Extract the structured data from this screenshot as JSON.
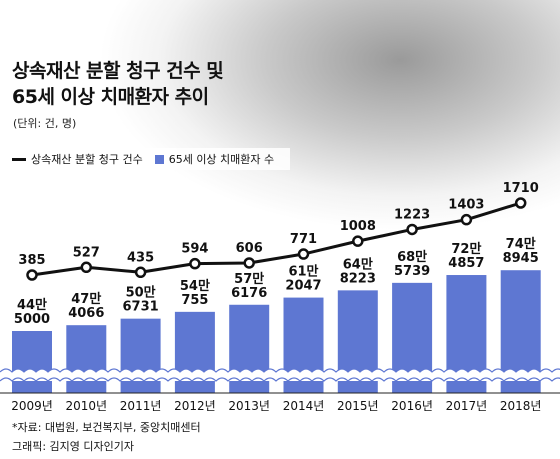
{
  "title_line1": "상속재산 분할 청구 건수 및",
  "title_line2": "65세 이상 치매환자 추이",
  "unit": "(단위: 건, 명)",
  "source": "*자료: 대법원, 보건복지부, 중앙치매센터",
  "credit": "그래픽: 김지영 디자인기자",
  "colors": {
    "bar": "#5e77d2",
    "line": "#111111"
  },
  "chart_data": {
    "type": "bar",
    "categories": [
      "2009년",
      "2010년",
      "2011년",
      "2012년",
      "2013년",
      "2014년",
      "2015년",
      "2016년",
      "2017년",
      "2018년"
    ],
    "series": [
      {
        "name": "65세 이상 치매환자 수",
        "type": "bar",
        "values": [
          445000,
          474066,
          506731,
          540755,
          576176,
          612047,
          648223,
          685739,
          724857,
          748945
        ],
        "labels_top": [
          "44만",
          "47만",
          "50만",
          "54만",
          "57만",
          "61만",
          "64만",
          "68만",
          "72만",
          "74만"
        ],
        "labels_bottom": [
          "5000",
          "4066",
          "6731",
          "755",
          "6176",
          "2047",
          "8223",
          "5739",
          "4857",
          "8945"
        ]
      },
      {
        "name": "상속재산 분할 청구 건수",
        "type": "line",
        "values": [
          385,
          527,
          435,
          594,
          606,
          771,
          1008,
          1223,
          1403,
          1710
        ]
      }
    ],
    "axis_broken": true,
    "legend_position": "top-left"
  }
}
